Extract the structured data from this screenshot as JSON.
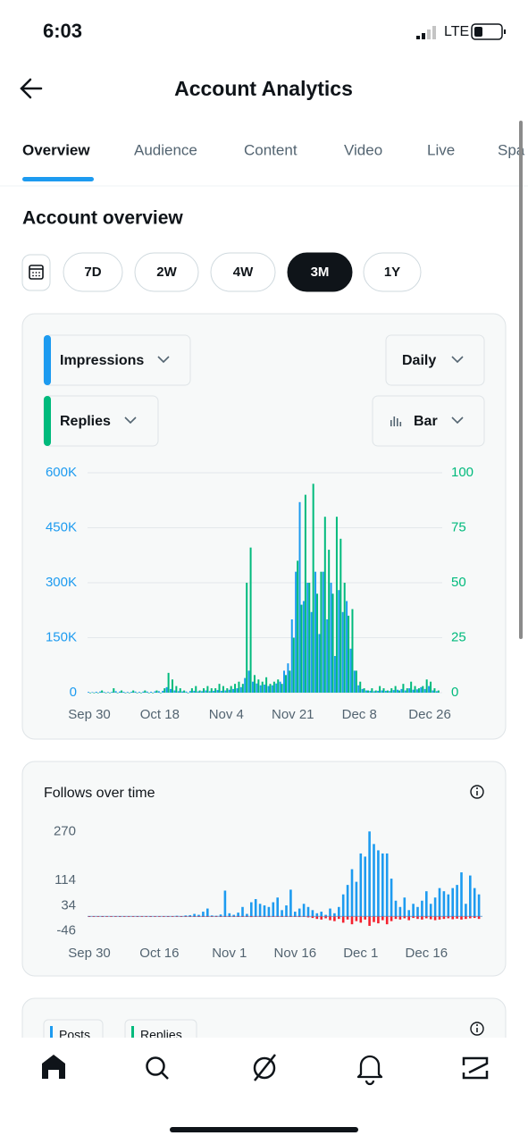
{
  "status": {
    "time": "6:03",
    "network": "LTE"
  },
  "header": {
    "title": "Account Analytics"
  },
  "tabs": [
    "Overview",
    "Audience",
    "Content",
    "Video",
    "Live",
    "Spa"
  ],
  "active_tab": "Overview",
  "section_title": "Account overview",
  "periods": [
    "7D",
    "2W",
    "4W",
    "3M",
    "1Y"
  ],
  "selected_period": "3M",
  "controls": {
    "metric1": "Impressions",
    "metric2": "Replies",
    "interval": "Daily",
    "style": "Bar"
  },
  "chart_data": [
    {
      "type": "bar",
      "categories": [
        "Sep 30",
        null,
        null,
        null,
        null,
        null,
        null,
        null,
        null,
        null,
        null,
        null,
        null,
        null,
        null,
        null,
        null,
        null,
        "Oct 18",
        null,
        null,
        null,
        null,
        null,
        null,
        null,
        null,
        null,
        null,
        null,
        null,
        null,
        null,
        null,
        null,
        "Nov 4",
        null,
        null,
        null,
        null,
        null,
        null,
        null,
        null,
        null,
        null,
        null,
        null,
        null,
        null,
        null,
        null,
        "Nov 21",
        null,
        null,
        null,
        null,
        null,
        null,
        null,
        null,
        null,
        null,
        null,
        null,
        null,
        null,
        null,
        null,
        "Dec 8",
        null,
        null,
        null,
        null,
        null,
        null,
        null,
        null,
        null,
        null,
        null,
        null,
        null,
        null,
        null,
        null,
        null,
        "Dec 26",
        null,
        null
      ],
      "series": [
        {
          "name": "Impressions",
          "color": "#1d9bf0",
          "values": [
            2000,
            1500,
            2500,
            3000,
            2000,
            1800,
            2200,
            4000,
            3000,
            2500,
            2000,
            2500,
            3000,
            2200,
            2800,
            3000,
            2500,
            3500,
            4000,
            5000,
            15000,
            10000,
            6000,
            4000,
            3500,
            3000,
            4500,
            5000,
            3500,
            4000,
            6000,
            4000,
            5000,
            7000,
            5000,
            6000,
            8000,
            10000,
            12000,
            15000,
            40000,
            60000,
            30000,
            25000,
            20000,
            22000,
            18000,
            20000,
            25000,
            30000,
            60000,
            80000,
            200000,
            330000,
            520000,
            250000,
            300000,
            220000,
            330000,
            160000,
            330000,
            200000,
            300000,
            100000,
            280000,
            220000,
            250000,
            120000,
            60000,
            20000,
            10000,
            6000,
            5000,
            4000,
            5000,
            6000,
            5000,
            4500,
            7000,
            8000,
            10000,
            6000,
            12000,
            8000,
            9000,
            15000,
            10000,
            18000,
            6000,
            4000
          ]
        },
        {
          "name": "Replies",
          "color": "#00ba7c",
          "axis": "y2",
          "values": [
            0,
            0,
            0,
            1,
            0,
            0,
            2,
            0,
            1,
            0,
            0,
            1,
            0,
            0,
            1,
            0,
            0,
            1,
            0,
            2,
            9,
            6,
            3,
            2,
            1,
            0,
            2,
            3,
            1,
            2,
            3,
            2,
            2,
            4,
            3,
            2,
            3,
            4,
            5,
            4,
            50,
            66,
            8,
            6,
            5,
            7,
            4,
            5,
            6,
            4,
            8,
            10,
            25,
            60,
            40,
            90,
            50,
            95,
            45,
            55,
            80,
            65,
            45,
            80,
            70,
            50,
            35,
            38,
            10,
            5,
            2,
            1,
            2,
            1,
            3,
            2,
            1,
            2,
            3,
            1,
            4,
            2,
            5,
            3,
            2,
            3,
            6,
            5,
            2,
            1
          ]
        }
      ],
      "ylim": [
        0,
        600000
      ],
      "yticks": [
        0,
        {
          "value": 150000,
          "label": "150K"
        },
        {
          "value": 300000,
          "label": "300K"
        },
        {
          "value": 450000,
          "label": "450K"
        },
        {
          "value": 600000,
          "label": "600K"
        }
      ],
      "y2lim": [
        0,
        100
      ],
      "y2ticks": [
        0,
        25,
        50,
        75,
        100
      ],
      "grid": true
    },
    {
      "type": "bar",
      "title": "Follows over time",
      "categories": [
        "Sep 30",
        null,
        null,
        null,
        null,
        null,
        null,
        null,
        null,
        null,
        null,
        null,
        null,
        null,
        null,
        null,
        "Oct 16",
        null,
        null,
        null,
        null,
        null,
        null,
        null,
        null,
        null,
        null,
        null,
        null,
        null,
        null,
        null,
        "Nov 1",
        null,
        null,
        null,
        null,
        null,
        null,
        null,
        null,
        null,
        null,
        null,
        null,
        null,
        null,
        "Nov 16",
        null,
        null,
        null,
        null,
        null,
        null,
        null,
        null,
        null,
        null,
        null,
        null,
        null,
        null,
        "Dec 1",
        null,
        null,
        null,
        null,
        null,
        null,
        null,
        null,
        null,
        null,
        null,
        null,
        null,
        null,
        "Dec 16",
        null,
        null,
        null,
        null,
        null,
        null,
        null,
        null,
        null,
        null,
        null,
        null
      ],
      "series": [
        {
          "color": "#1d9bf0",
          "values": [
            1,
            0,
            0,
            1,
            0,
            0,
            0,
            1,
            0,
            0,
            0,
            1,
            0,
            0,
            1,
            0,
            0,
            0,
            1,
            0,
            2,
            1,
            3,
            4,
            8,
            5,
            15,
            25,
            3,
            2,
            6,
            82,
            10,
            5,
            12,
            30,
            8,
            45,
            55,
            40,
            35,
            30,
            45,
            60,
            20,
            35,
            85,
            15,
            25,
            40,
            30,
            20,
            10,
            15,
            5,
            25,
            10,
            30,
            70,
            100,
            150,
            110,
            200,
            190,
            270,
            230,
            210,
            200,
            200,
            120,
            50,
            30,
            60,
            20,
            40,
            30,
            50,
            80,
            40,
            60,
            90,
            80,
            70,
            90,
            100,
            140,
            40,
            130,
            90,
            70
          ]
        },
        {
          "color": "#f4212e",
          "values": [
            0,
            0,
            0,
            0,
            0,
            0,
            0,
            0,
            0,
            0,
            0,
            0,
            0,
            0,
            0,
            0,
            0,
            0,
            0,
            0,
            0,
            0,
            0,
            0,
            -1,
            0,
            0,
            0,
            0,
            0,
            0,
            0,
            -1,
            0,
            0,
            0,
            0,
            -2,
            0,
            0,
            0,
            -2,
            0,
            0,
            0,
            -1,
            0,
            0,
            -2,
            0,
            -3,
            -5,
            -8,
            -10,
            -6,
            -12,
            -15,
            -8,
            -20,
            -10,
            -25,
            -15,
            -20,
            -10,
            -30,
            -18,
            -22,
            -12,
            -25,
            -15,
            -8,
            -10,
            -6,
            -12,
            -5,
            -8,
            -10,
            -6,
            -9,
            -12,
            -10,
            -8,
            -6,
            -9,
            -7,
            -10,
            -8,
            -6,
            -5,
            -8
          ]
        }
      ],
      "ylim": [
        -70,
        285
      ],
      "yticks": [
        -46,
        34,
        114,
        270
      ],
      "grid": false
    }
  ],
  "bottom_card": {
    "legend": [
      "Posts",
      "Replies"
    ]
  }
}
